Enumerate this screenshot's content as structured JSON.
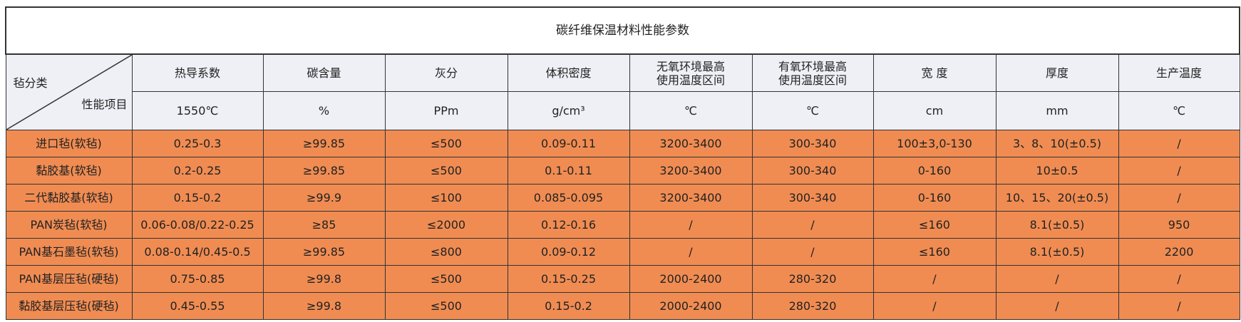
{
  "title": "碳纤维保温材料性能参数",
  "header": {
    "corner": {
      "top": "毡分类",
      "bottom": "性能项目"
    },
    "columns": [
      {
        "name": [
          "热导系数"
        ],
        "unit": "1550℃"
      },
      {
        "name": [
          "碳含量"
        ],
        "unit": "%"
      },
      {
        "name": [
          "灰分"
        ],
        "unit": "PPm"
      },
      {
        "name": [
          "体积密度"
        ],
        "unit": "g/cm³"
      },
      {
        "name": [
          "无氧环境最高",
          "使用温度区间"
        ],
        "unit": "℃"
      },
      {
        "name": [
          "有氧环境最高",
          "使用温度区间"
        ],
        "unit": "℃"
      },
      {
        "name": [
          "宽 度"
        ],
        "unit": "cm"
      },
      {
        "name": [
          "厚度"
        ],
        "unit": "mm"
      },
      {
        "name": [
          "生产温度"
        ],
        "unit": "℃"
      }
    ]
  },
  "table": {
    "rows": [
      [
        "进口毡(软毡)",
        "0.25-0.3",
        "≥99.85",
        "≤500",
        "0.09-0.11",
        "3200-3400",
        "300-340",
        "100±3,0-130",
        "3、8、10(±0.5)",
        "/"
      ],
      [
        "黏胶基(软毡)",
        "0.2-0.25",
        "≥99.85",
        "≤500",
        "0.1-0.11",
        "3200-3400",
        "300-340",
        "0-160",
        "10±0.5",
        "/"
      ],
      [
        "二代黏胶基(软毡)",
        "0.15-0.2",
        "≥99.9",
        "≤100",
        "0.085-0.095",
        "3200-3400",
        "300-340",
        "0-160",
        "10、15、20(±0.5)",
        "/"
      ],
      [
        "PAN炭毡(软毡)",
        "0.06-0.08/0.22-0.25",
        "≥85",
        "≤2000",
        "0.12-0.16",
        "/",
        "/",
        "≤160",
        "8.1(±0.5)",
        "950"
      ],
      [
        "PAN基石墨毡(软毡)",
        "0.08-0.14/0.45-0.5",
        "≥99.85",
        "≤800",
        "0.09-0.12",
        "/",
        "/",
        "≤160",
        "8.1(±0.5)",
        "2200"
      ],
      [
        "PAN基层压毡(硬毡)",
        "0.75-0.85",
        "≥99.8",
        "≤500",
        "0.15-0.25",
        "2000-2400",
        "280-320",
        "/",
        "/",
        "/"
      ],
      [
        "黏胶基层压毡(硬毡)",
        "0.45-0.55",
        "≥99.8",
        "≤500",
        "0.15-0.2",
        "2000-2400",
        "280-320",
        "/",
        "/",
        "/"
      ]
    ]
  }
}
